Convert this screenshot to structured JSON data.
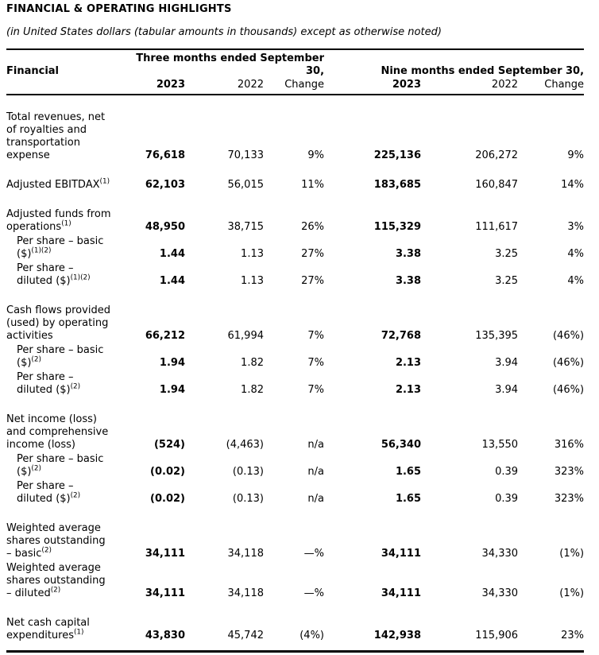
{
  "title": "FINANCIAL & OPERATING HIGHLIGHTS",
  "subtitle": "(in United States dollars (tabular amounts in thousands) except as otherwise noted)",
  "table": {
    "row_header": "Financial",
    "col_groups": {
      "three_months": "Three months ended September\n30,",
      "nine_months": "Nine months ended September 30,"
    },
    "col_headers": [
      "2023",
      "2022",
      "Change",
      "2023",
      "2022",
      "Change"
    ],
    "rows": [
      {
        "label": "Total revenues, net\nof royalties and\ntransportation\nexpense",
        "sup": "",
        "indent": false,
        "gap": true,
        "values": [
          "76,618",
          "70,133",
          "9%",
          "225,136",
          "206,272",
          "9%"
        ]
      },
      {
        "label": "Adjusted EBITDAX",
        "sup": "(1)",
        "indent": false,
        "gap": true,
        "values": [
          "62,103",
          "56,015",
          "11%",
          "183,685",
          "160,847",
          "14%"
        ]
      },
      {
        "label": "Adjusted funds from\noperations",
        "sup": "(1)",
        "indent": false,
        "gap": true,
        "values": [
          "48,950",
          "38,715",
          "26%",
          "115,329",
          "111,617",
          "3%"
        ]
      },
      {
        "label": "Per share – basic\n($)",
        "sup": "(1)(2)",
        "indent": true,
        "gap": false,
        "values": [
          "1.44",
          "1.13",
          "27%",
          "3.38",
          "3.25",
          "4%"
        ]
      },
      {
        "label": "Per share –\ndiluted ($)",
        "sup": "(1)(2)",
        "indent": true,
        "gap": false,
        "values": [
          "1.44",
          "1.13",
          "27%",
          "3.38",
          "3.25",
          "4%"
        ]
      },
      {
        "label": "Cash flows provided\n(used) by operating\nactivities",
        "sup": "",
        "indent": false,
        "gap": true,
        "values": [
          "66,212",
          "61,994",
          "7%",
          "72,768",
          "135,395",
          "(46%)"
        ]
      },
      {
        "label": "Per share – basic\n($)",
        "sup": "(2)",
        "indent": true,
        "gap": false,
        "values": [
          "1.94",
          "1.82",
          "7%",
          "2.13",
          "3.94",
          "(46%)"
        ]
      },
      {
        "label": "Per share –\ndiluted ($)",
        "sup": "(2)",
        "indent": true,
        "gap": false,
        "values": [
          "1.94",
          "1.82",
          "7%",
          "2.13",
          "3.94",
          "(46%)"
        ]
      },
      {
        "label": "Net income (loss)\nand comprehensive\nincome (loss)",
        "sup": "",
        "indent": false,
        "gap": true,
        "values": [
          "(524)",
          "(4,463)",
          "n/a",
          "56,340",
          "13,550",
          "316%"
        ]
      },
      {
        "label": "Per share – basic\n($)",
        "sup": "(2)",
        "indent": true,
        "gap": false,
        "values": [
          "(0.02)",
          "(0.13)",
          "n/a",
          "1.65",
          "0.39",
          "323%"
        ]
      },
      {
        "label": "Per share –\ndiluted ($)",
        "sup": "(2)",
        "indent": true,
        "gap": false,
        "values": [
          "(0.02)",
          "(0.13)",
          "n/a",
          "1.65",
          "0.39",
          "323%"
        ]
      },
      {
        "label": "Weighted average\nshares outstanding\n– basic",
        "sup": "(2)",
        "indent": false,
        "gap": true,
        "values": [
          "34,111",
          "34,118",
          "—%",
          "34,111",
          "34,330",
          "(1%)"
        ]
      },
      {
        "label": "Weighted average\nshares outstanding\n– diluted",
        "sup": "(2)",
        "indent": false,
        "gap": false,
        "values": [
          "34,111",
          "34,118",
          "—%",
          "34,111",
          "34,330",
          "(1%)"
        ]
      },
      {
        "label": "Net cash capital\nexpenditures",
        "sup": "(1)",
        "indent": false,
        "gap": true,
        "values": [
          "43,830",
          "45,742",
          "(4%)",
          "142,938",
          "115,906",
          "23%"
        ]
      }
    ]
  }
}
